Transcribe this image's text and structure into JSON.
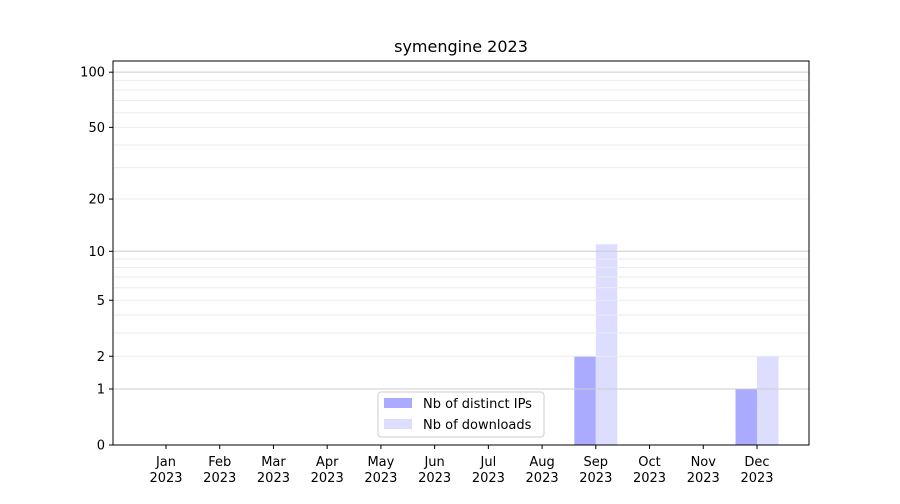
{
  "chart_data": {
    "type": "bar",
    "title": "symengine 2023",
    "xlabel": "",
    "ylabel": "",
    "y_scale": "log(1+y)",
    "ylim": [
      0,
      115
    ],
    "y_ticks": [
      0,
      1,
      2,
      5,
      10,
      20,
      50,
      100
    ],
    "y_tick_labels": [
      "0",
      "1",
      "2",
      "5",
      "10",
      "20",
      "50",
      "100"
    ],
    "grid": true,
    "legend_position": "lower-center",
    "categories": [
      [
        "Jan",
        "2023"
      ],
      [
        "Feb",
        "2023"
      ],
      [
        "Mar",
        "2023"
      ],
      [
        "Apr",
        "2023"
      ],
      [
        "May",
        "2023"
      ],
      [
        "Jun",
        "2023"
      ],
      [
        "Jul",
        "2023"
      ],
      [
        "Aug",
        "2023"
      ],
      [
        "Sep",
        "2023"
      ],
      [
        "Oct",
        "2023"
      ],
      [
        "Nov",
        "2023"
      ],
      [
        "Dec",
        "2023"
      ]
    ],
    "series": [
      {
        "name": "Nb of distinct IPs",
        "color": "#aaaaff",
        "values": [
          0,
          0,
          0,
          0,
          0,
          0,
          0,
          0,
          2,
          0,
          0,
          1
        ]
      },
      {
        "name": "Nb of downloads",
        "color": "#ddddff",
        "values": [
          0,
          0,
          0,
          0,
          0,
          0,
          0,
          0,
          11,
          0,
          0,
          2
        ]
      }
    ]
  }
}
